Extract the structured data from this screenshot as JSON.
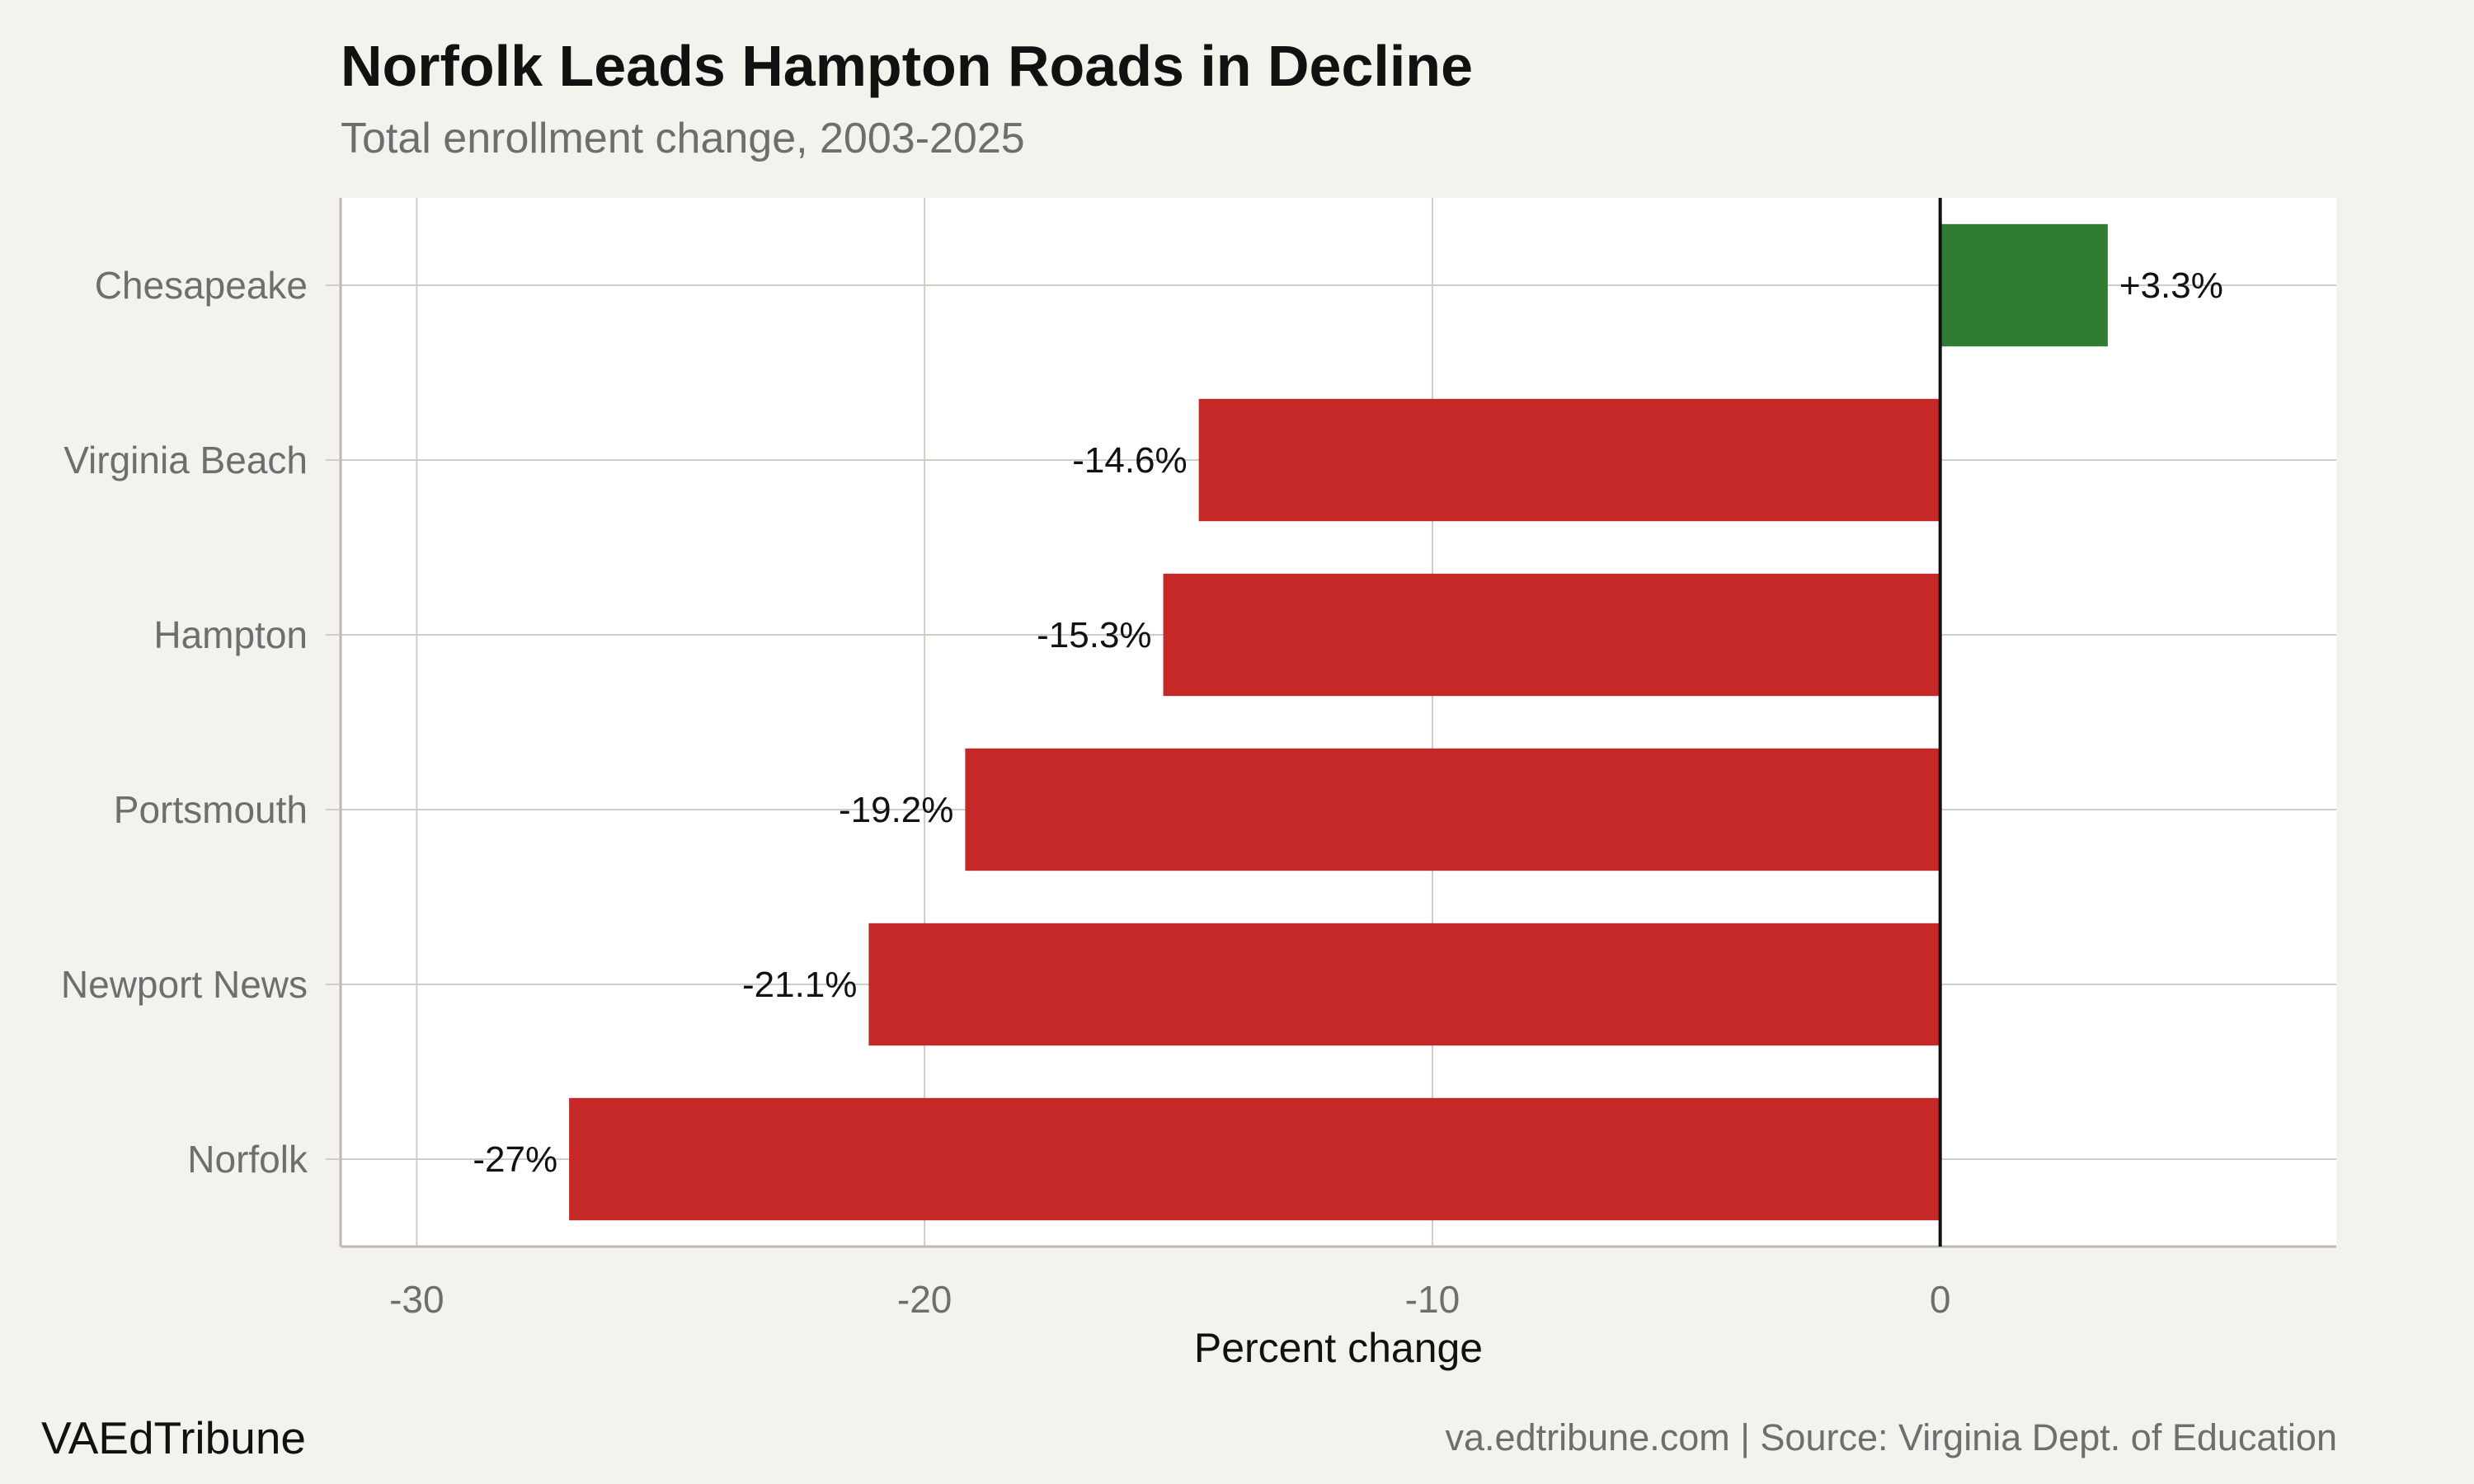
{
  "header": {
    "title": "Norfolk Leads Hampton Roads in Decline",
    "subtitle": "Total enrollment change, 2003-2025"
  },
  "footer": {
    "brand": "VAEdTribune",
    "source": "va.edtribune.com | Source: Virginia Dept. of Education"
  },
  "colors": {
    "positive": "#2e7d32",
    "negative": "#c62828",
    "panel": "#ffffff",
    "background": "#f4f2ed",
    "grid": "#cfcdc6"
  },
  "chart_data": {
    "type": "bar",
    "orientation": "horizontal",
    "title": "Norfolk Leads Hampton Roads in Decline",
    "subtitle": "Total enrollment change, 2003-2025",
    "xlabel": "Percent change",
    "ylabel": "",
    "categories": [
      "Chesapeake",
      "Virginia Beach",
      "Hampton",
      "Portsmouth",
      "Newport News",
      "Norfolk"
    ],
    "values": [
      3.3,
      -14.6,
      -15.3,
      -19.2,
      -21.1,
      -27
    ],
    "data_labels": [
      "+3.3%",
      "-14.6%",
      "-15.3%",
      "-19.2%",
      "-21.1%",
      "-27%"
    ],
    "xlim": [
      -31.5,
      7.8
    ],
    "xticks": [
      -30,
      -20,
      -10,
      0
    ],
    "xtick_labels": [
      "-30",
      "-20",
      "-10",
      "0"
    ],
    "grid": true,
    "legend": "none"
  }
}
